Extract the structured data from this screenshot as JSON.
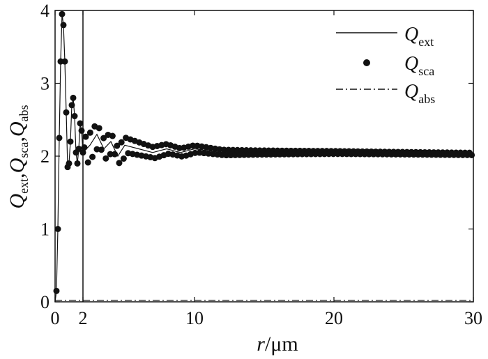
{
  "chart_data": {
    "type": "line",
    "title": "",
    "xlabel": {
      "italic": "r",
      "rest": "/μm"
    },
    "ylabel": {
      "parts": [
        {
          "main": "Q",
          "sub": "ext"
        },
        {
          "main": "Q",
          "sub": "sca"
        },
        {
          "main": "Q",
          "sub": "abs"
        }
      ]
    },
    "xlim": [
      0,
      30
    ],
    "ylim": [
      0,
      4
    ],
    "x_ticks": [
      "0",
      "2",
      "10",
      "20",
      "30"
    ],
    "y_ticks": [
      "0",
      "1",
      "2",
      "3",
      "4"
    ],
    "reference_line_x": 2,
    "legend_position": "top-right",
    "legend": [
      {
        "main": "Q",
        "sub": "ext",
        "style": "solid-line"
      },
      {
        "main": "Q",
        "sub": "sca",
        "style": "dot"
      },
      {
        "main": "Q",
        "sub": "abs",
        "style": "dash-dot-line"
      }
    ],
    "series": [
      {
        "name": "Qext",
        "style": "solid-line",
        "x": [
          0.0,
          0.1,
          0.2,
          0.3,
          0.4,
          0.5,
          0.6,
          0.7,
          0.8,
          0.9,
          1.0,
          1.1,
          1.2,
          1.3,
          1.4,
          1.5,
          1.6,
          1.7,
          1.8,
          1.9,
          2.0,
          2.5,
          3.0,
          3.5,
          4.0,
          4.5,
          5.0,
          6.0,
          7.0,
          8.0,
          9.0,
          10.0,
          12.0,
          15.0,
          20.0,
          25.0,
          30.0
        ],
        "values": [
          0.0,
          0.15,
          1.0,
          2.25,
          3.3,
          3.95,
          3.8,
          3.3,
          2.6,
          1.85,
          1.9,
          2.2,
          2.7,
          2.8,
          2.55,
          2.05,
          1.9,
          2.1,
          2.45,
          2.35,
          2.05,
          2.15,
          2.3,
          2.1,
          2.2,
          2.0,
          2.15,
          2.1,
          2.05,
          2.1,
          2.05,
          2.1,
          2.05,
          2.05,
          2.05,
          2.04,
          2.03
        ]
      },
      {
        "name": "Qsca",
        "style": "dot",
        "x": [
          0.1,
          0.2,
          0.3,
          0.4,
          0.5,
          0.6,
          0.7,
          0.8,
          0.9,
          1.0,
          1.1,
          1.2,
          1.3,
          1.4,
          1.5,
          1.6,
          1.7,
          1.8,
          1.9,
          2.0,
          2.1
        ],
        "values": [
          0.15,
          1.0,
          2.25,
          3.3,
          3.95,
          3.8,
          3.3,
          2.6,
          1.85,
          1.9,
          2.2,
          2.7,
          2.8,
          2.55,
          2.05,
          1.9,
          2.1,
          2.45,
          2.35,
          2.05,
          2.12
        ]
      },
      {
        "name": "Qabs",
        "style": "dash-dot-line",
        "x": [
          0,
          30
        ],
        "values": [
          0.02,
          0.02
        ]
      }
    ]
  }
}
